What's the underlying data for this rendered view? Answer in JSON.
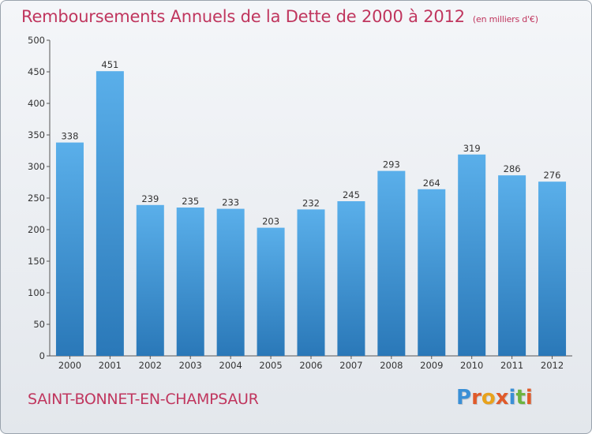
{
  "header": {
    "title": "Remboursements Annuels de la Dette de 2000 à 2012",
    "subtitle": "(en milliers d'€)"
  },
  "footer": {
    "city": "SAINT-BONNET-EN-CHAMPSAUR",
    "logo": "Proxiti"
  },
  "colors": {
    "accent": "#c0365e",
    "bar_light": "#5aafea",
    "bar_dark": "#2a78b8",
    "logo_letters": [
      "#3a8fd6",
      "#e05a2a",
      "#e8a21c",
      "#e05a2a",
      "#3a8fd6",
      "#6db33f",
      "#e05a2a"
    ]
  },
  "chart_data": {
    "type": "bar",
    "categories": [
      "2000",
      "2001",
      "2002",
      "2003",
      "2004",
      "2005",
      "2006",
      "2007",
      "2008",
      "2009",
      "2010",
      "2011",
      "2012"
    ],
    "values": [
      338,
      451,
      239,
      235,
      233,
      203,
      232,
      245,
      293,
      264,
      319,
      286,
      276
    ],
    "ylim": [
      0,
      500
    ],
    "yticks": [
      "0",
      "50",
      "100",
      "150",
      "200",
      "250",
      "300",
      "350",
      "400",
      "450",
      "500"
    ],
    "grid": false,
    "legend": "none"
  }
}
